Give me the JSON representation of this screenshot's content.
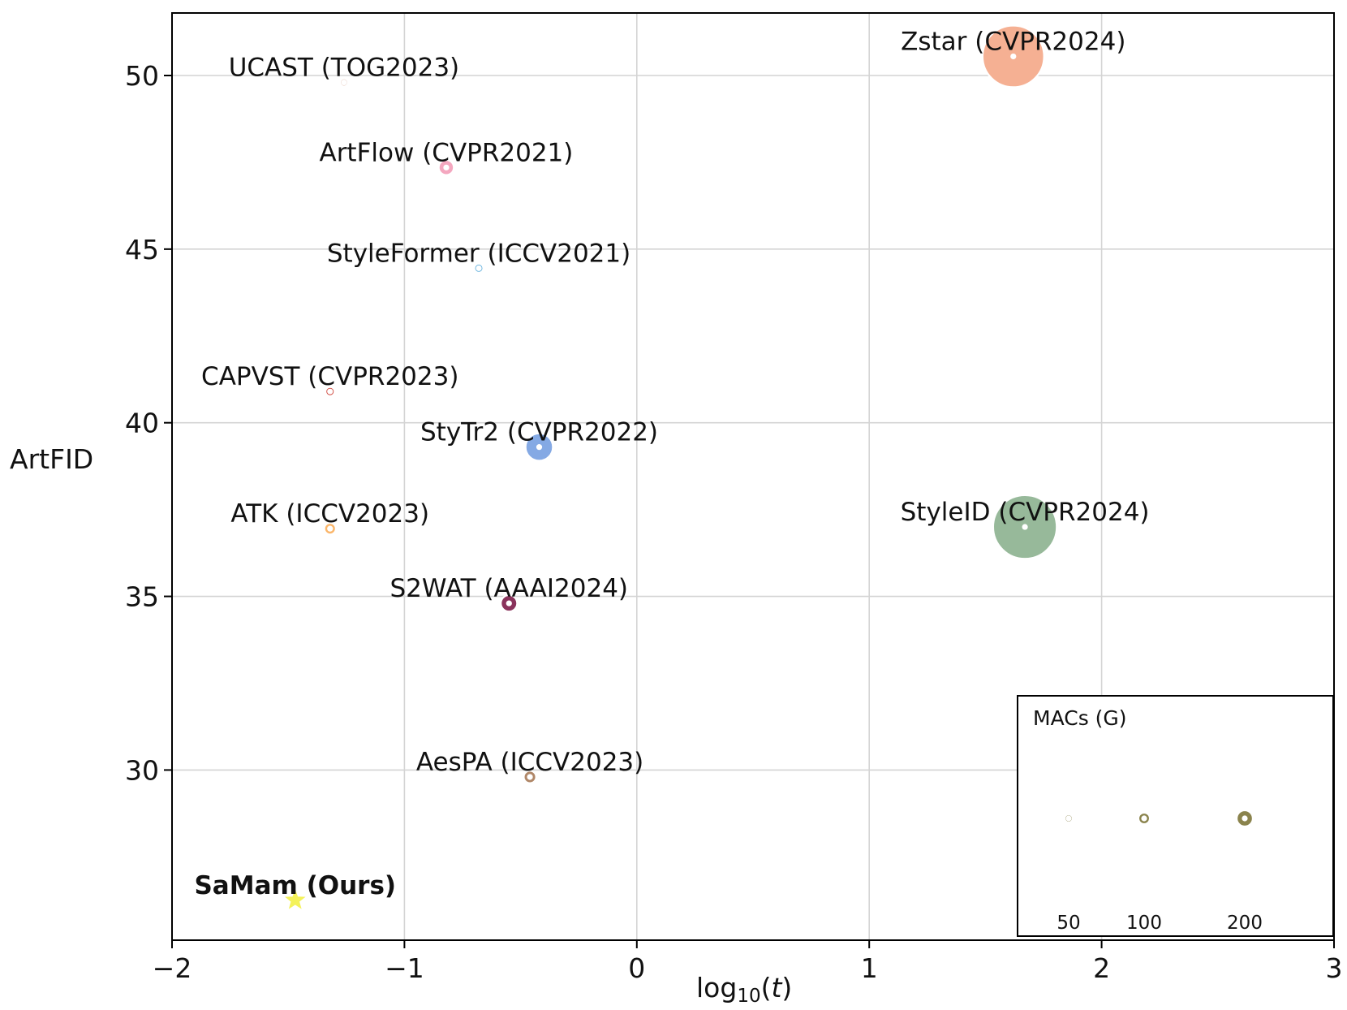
{
  "chart_data": {
    "type": "scatter",
    "variant": "bubble",
    "title": "",
    "xlabel": "log10(t)",
    "xlabel_base": "log",
    "xlabel_sub": "10",
    "xlabel_var": "t",
    "ylabel": "ArtFID",
    "xlim": [
      -2,
      3
    ],
    "ylim": [
      25.1,
      51.8
    ],
    "xticks": [
      -2,
      -1,
      0,
      1,
      2,
      3
    ],
    "xtick_labels": [
      "−2",
      "−1",
      "0",
      "1",
      "2",
      "3"
    ],
    "yticks": [
      30,
      35,
      40,
      45,
      50
    ],
    "ytick_labels": [
      "30",
      "35",
      "40",
      "45",
      "50"
    ],
    "grid": true,
    "size_encoding": "MACs (G)",
    "points": [
      {
        "name": "Zstar (CVPR2024)",
        "x": 1.62,
        "y": 50.55,
        "macs": 2900,
        "color": "#f5b093"
      },
      {
        "name": "StyleID (CVPR2024)",
        "x": 1.67,
        "y": 37.0,
        "macs": 3100,
        "color": "#97b99a"
      },
      {
        "name": "StyTr2 (CVPR2022)",
        "x": -0.42,
        "y": 39.3,
        "macs": 575,
        "color": "#84a9e4"
      },
      {
        "name": "ArtFlow (CVPR2021)",
        "x": -0.82,
        "y": 47.35,
        "macs": 175,
        "color": "#f4a7bf"
      },
      {
        "name": "UCAST (TOG2023)",
        "x": -1.26,
        "y": 49.8,
        "macs": 48,
        "color": "#d39b85"
      },
      {
        "name": "StyleFormer (ICCV2021)",
        "x": -0.68,
        "y": 44.45,
        "macs": 62,
        "color": "#5aacdb"
      },
      {
        "name": "CAPVST (CVPR2023)",
        "x": -1.32,
        "y": 40.9,
        "macs": 63,
        "color": "#cd3d33"
      },
      {
        "name": "ATK (ICCV2023)",
        "x": -1.32,
        "y": 36.95,
        "macs": 103,
        "color": "#fbb66a"
      },
      {
        "name": "S2WAT (AAAI2024)",
        "x": -0.55,
        "y": 34.8,
        "macs": 206,
        "color": "#8a335c"
      },
      {
        "name": "AesPA (ICCV2023)",
        "x": -0.46,
        "y": 29.8,
        "macs": 118,
        "color": "#b08768"
      },
      {
        "name": "SaMam (Ours)",
        "x": -1.47,
        "y": 26.25,
        "macs": 25,
        "color": "#f37347",
        "highlight": true
      }
    ],
    "legend": {
      "title": "MACs (G)",
      "position": "lower-right",
      "color": "#8a834c",
      "sizes": [
        50,
        100,
        200
      ],
      "labels": [
        "50",
        "100",
        "200"
      ]
    }
  }
}
